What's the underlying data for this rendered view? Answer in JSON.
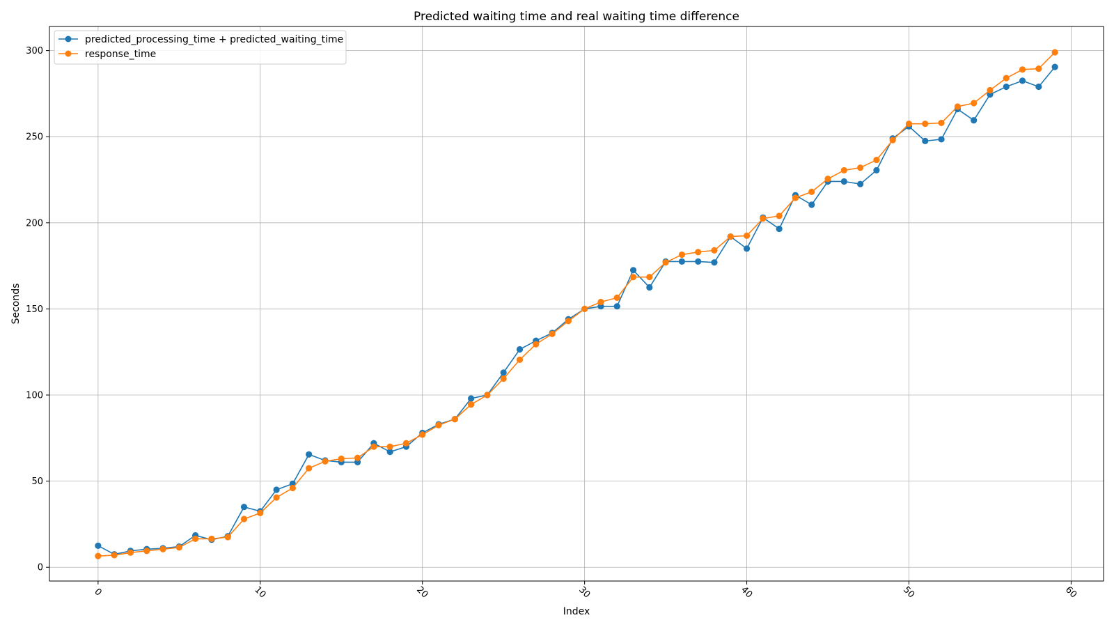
{
  "chart_data": {
    "type": "line",
    "title": "Predicted waiting time and real waiting time difference",
    "xlabel": "Index",
    "ylabel": "Seconds",
    "xlim": [
      -3,
      62
    ],
    "ylim": [
      -8,
      314
    ],
    "x_ticks": [
      0,
      10,
      20,
      30,
      40,
      50,
      60
    ],
    "y_ticks": [
      0,
      50,
      100,
      150,
      200,
      250,
      300
    ],
    "grid": true,
    "legend_position": "top-left",
    "x": [
      0,
      1,
      2,
      3,
      4,
      5,
      6,
      7,
      8,
      9,
      10,
      11,
      12,
      13,
      14,
      15,
      16,
      17,
      18,
      19,
      20,
      21,
      22,
      23,
      24,
      25,
      26,
      27,
      28,
      29,
      30,
      31,
      32,
      33,
      34,
      35,
      36,
      37,
      38,
      39,
      40,
      41,
      42,
      43,
      44,
      45,
      46,
      47,
      48,
      49,
      50,
      51,
      52,
      53,
      54,
      55,
      56,
      57,
      58,
      59
    ],
    "series": [
      {
        "name": "predicted_processing_time + predicted_waiting_time",
        "color": "#1f77b4",
        "values": [
          12.5,
          7.5,
          9.5,
          10.5,
          11,
          12,
          18.5,
          16,
          18,
          35,
          32.5,
          45,
          48.5,
          65.5,
          62,
          61,
          61,
          72,
          67,
          70,
          78,
          83,
          86,
          98,
          100,
          113,
          126.5,
          131.5,
          136,
          144,
          150,
          151.5,
          151.5,
          172.5,
          162.5,
          177.5,
          177.5,
          177.5,
          177,
          192,
          185,
          203,
          196.5,
          216,
          210.5,
          224,
          224,
          222.5,
          230.5,
          249,
          256,
          247.5,
          248.5,
          266,
          259.5,
          274.5,
          279,
          282.5,
          279,
          290.5
        ]
      },
      {
        "name": "response_time",
        "color": "#ff7f0e",
        "values": [
          6.5,
          7,
          8.5,
          9.5,
          10.5,
          11.5,
          16.5,
          16.5,
          17.5,
          28,
          31.5,
          40.5,
          46,
          57.5,
          61.5,
          63,
          63.5,
          70,
          70,
          72,
          77,
          82.5,
          86,
          94.5,
          100,
          109.5,
          120.5,
          129.5,
          135.5,
          143,
          150,
          154,
          156.5,
          168.5,
          168.5,
          177,
          181.5,
          183,
          184,
          192,
          192.5,
          202.5,
          204,
          214.5,
          218,
          225.5,
          230.5,
          232,
          236.5,
          248,
          257.5,
          257.5,
          258,
          267.5,
          269.5,
          277,
          284,
          289,
          289.5,
          299
        ]
      }
    ]
  }
}
